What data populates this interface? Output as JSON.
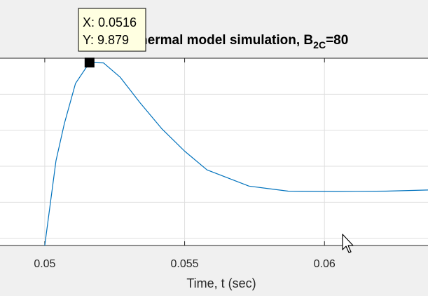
{
  "chart_data": {
    "type": "line",
    "title": {
      "prefix": "Motor thermal model simulation, B",
      "subscript": "2C",
      "suffix": "=80"
    },
    "xlabel": "Time, t (sec)",
    "ylabel": "",
    "xlim": [
      0.0484,
      0.0637
    ],
    "ylim": [
      4.8,
      10.0
    ],
    "xticks": [
      0.05,
      0.055,
      0.06
    ],
    "xtick_labels": [
      "0.05",
      "0.055",
      "0.06"
    ],
    "ygrid": [
      5,
      6,
      7,
      8,
      9,
      10
    ],
    "grid": true,
    "series": [
      {
        "color": "#0072bd",
        "x": [
          0.05,
          0.0504,
          0.0507,
          0.0511,
          0.0516,
          0.0521,
          0.0527,
          0.0534,
          0.0542,
          0.055,
          0.0558,
          0.0573,
          0.0587,
          0.0605,
          0.0622,
          0.0637
        ],
        "y": [
          4.8,
          7.15,
          8.18,
          9.3,
          9.879,
          9.87,
          9.47,
          8.77,
          8.03,
          7.42,
          6.9,
          6.45,
          6.31,
          6.3,
          6.31,
          6.34
        ]
      }
    ],
    "datatip": {
      "x_text": "X: 0.0516",
      "y_text": "Y: 9.879",
      "x": 0.0516,
      "y": 9.879
    }
  }
}
